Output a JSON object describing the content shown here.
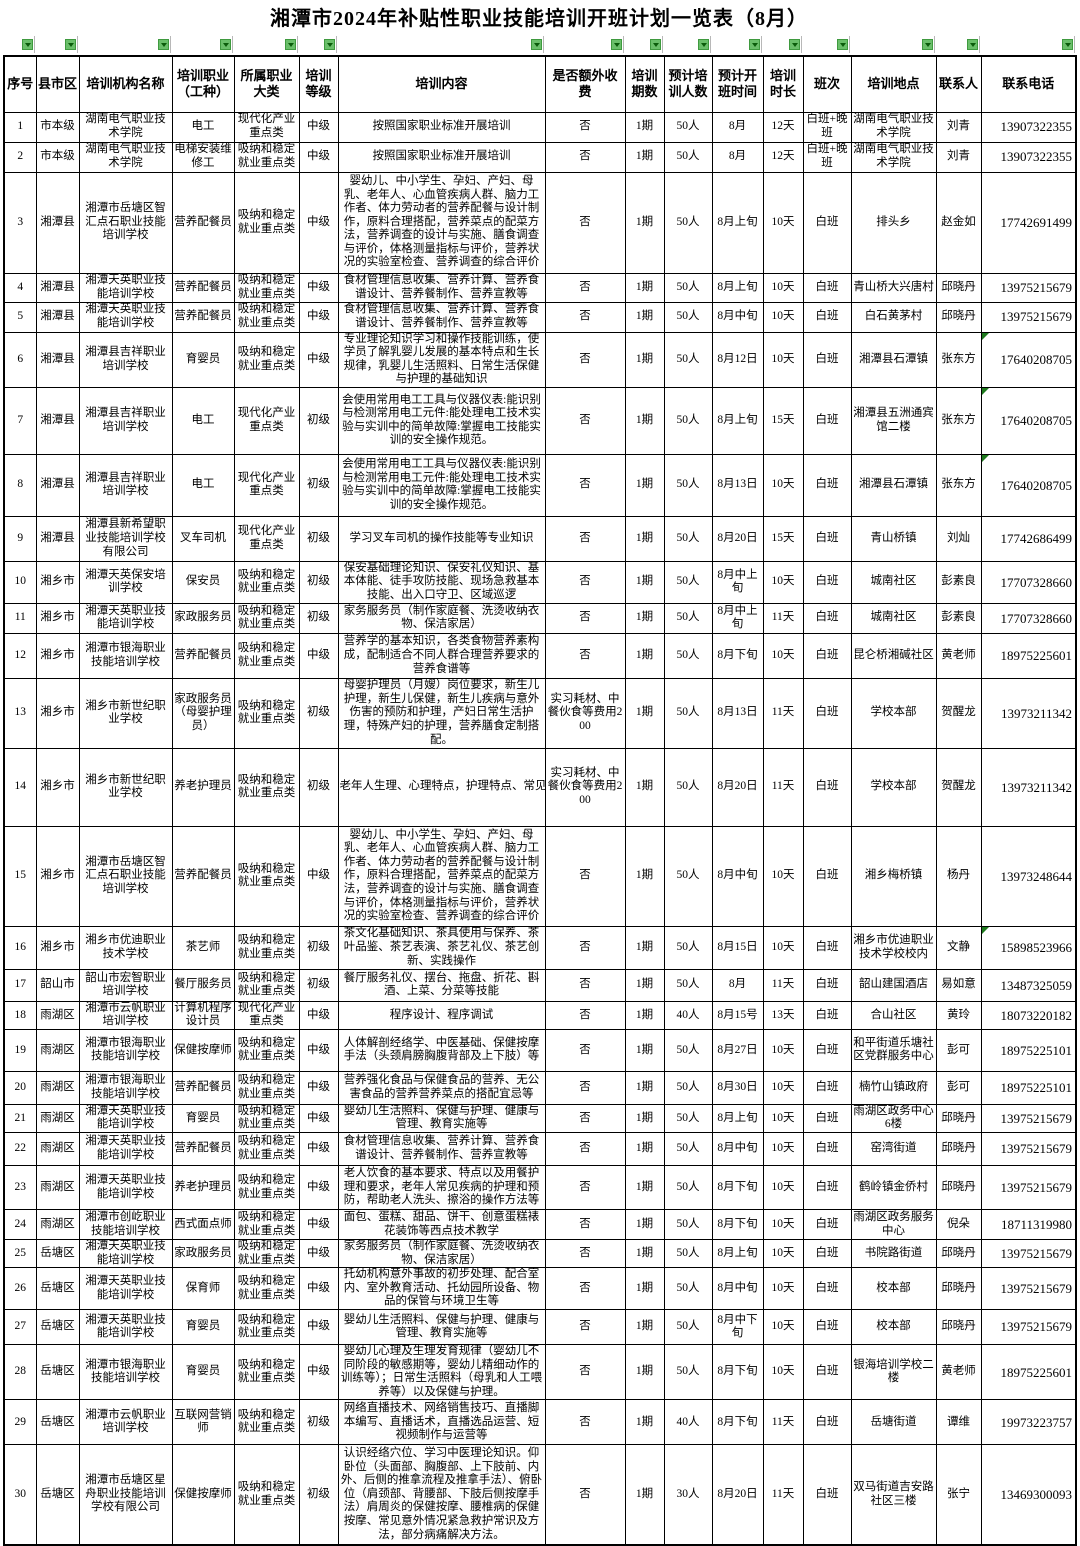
{
  "title": "湘潭市2024年补贴性职业技能培训开班计划一览表（8月）",
  "colors": {
    "filter_arrow_fill": "#6abf6a",
    "filter_arrow_triangle": "#0b5c0b",
    "cell_flag_green": "#1e7a1e",
    "grid_line": "#000000"
  },
  "icons": {
    "filter_arrow": "filter-dropdown-arrow-icon",
    "cell_flag": "cell-error-flag-icon"
  },
  "table": {
    "columns": [
      "序号",
      "县市区",
      "培训机构名称",
      "培训职业（工种）",
      "所属职业大类",
      "培训等级",
      "培训内容",
      "是否额外收费",
      "培训期数",
      "预计培训人数",
      "预计开班时间",
      "培训时长",
      "班次",
      "培训地点",
      "联系人",
      "联系电话"
    ],
    "rows": [
      [
        "1",
        "市本级",
        "湖南电气职业技术学院",
        "电工",
        "现代化产业重点类",
        "中级",
        "按照国家职业标准开展培训",
        "否",
        "1期",
        "50人",
        "8月",
        "12天",
        "白班+晚班",
        "湖南电气职业技术学院",
        "刘青",
        "13907322355"
      ],
      [
        "2",
        "市本级",
        "湖南电气职业技术学院",
        "电梯安装维修工",
        "吸纳和稳定就业重点类",
        "中级",
        "按照国家职业标准开展培训",
        "否",
        "1期",
        "50人",
        "8月",
        "12天",
        "白班+晚班",
        "湖南电气职业技术学院",
        "刘青",
        "13907322355"
      ],
      [
        "3",
        "湘潭县",
        "湘潭市岳塘区智汇点石职业技能培训学校",
        "营养配餐员",
        "吸纳和稳定就业重点类",
        "中级",
        "婴幼儿、中小学生、孕妇、产妇、母乳、老年人、心血管疾病人群、脑力工作者、体力劳动者的营养配餐与设计制作，原料合理搭配，营养菜点的配菜方法，营养调查的设计与实施、膳食调查与评价，体格测量指标与评价，营养状况的实验室检查、营养调查的综合评价",
        "否",
        "1期",
        "50人",
        "8月上旬",
        "10天",
        "白班",
        "排头乡",
        "赵金如",
        "17742691499"
      ],
      [
        "4",
        "湘潭县",
        "湘潭天英职业技能培训学校",
        "营养配餐员",
        "吸纳和稳定就业重点类",
        "中级",
        "食材管理信息收集、营养计算、营养食谱设计、营养餐制作、营养宣教等",
        "否",
        "1期",
        "50人",
        "8月上旬",
        "10天",
        "白班",
        "青山桥大兴唐村",
        "邱晓丹",
        "13975215679"
      ],
      [
        "5",
        "湘潭县",
        "湘潭天英职业技能培训学校",
        "营养配餐员",
        "吸纳和稳定就业重点类",
        "中级",
        "食材管理信息收集、营养计算、营养食谱设计、营养餐制作、营养宣教等",
        "否",
        "1期",
        "50人",
        "8月中旬",
        "10天",
        "白班",
        "白石黄茅村",
        "邱晓丹",
        "13975215679"
      ],
      [
        "6",
        "湘潭县",
        "湘潭县吉祥职业培训学校",
        "育婴员",
        "吸纳和稳定就业重点类",
        "中级",
        "专业理论知识学习和操作技能训练，使学员了解乳婴儿发展的基本特点和生长规律，乳婴儿生活照料、日常生活保健与护理的基础知识",
        "否",
        "1期",
        "50人",
        "8月12日",
        "10天",
        "白班",
        "湘潭县石潭镇",
        "张东方",
        "17640208705"
      ],
      [
        "7",
        "湘潭县",
        "湘潭县吉祥职业培训学校",
        "电工",
        "现代化产业重点类",
        "初级",
        "会使用常用电工工具与仪器仪表:能识别与检测常用电工元件:能处理电工技术实验与实训中的简单故障:掌握电工技能实训的安全操作规范。",
        "否",
        "1期",
        "50人",
        "8月上旬",
        "15天",
        "白班",
        "湘潭县五洲通宾馆二楼",
        "张东方",
        "17640208705"
      ],
      [
        "8",
        "湘潭县",
        "湘潭县吉祥职业培训学校",
        "电工",
        "现代化产业重点类",
        "初级",
        "会使用常用电工工具与仪器仪表:能识别与检测常用电工元件:能处理电工技术实验与实训中的简单故障:掌握电工技能实训的安全操作规范。",
        "否",
        "1期",
        "50人",
        "8月13日",
        "10天",
        "白班",
        "湘潭县石潭镇",
        "张东方",
        "17640208705"
      ],
      [
        "9",
        "湘潭县",
        "湘潭县新希望职业技能培训学校有限公司",
        "叉车司机",
        "现代化产业重点类",
        "初级",
        "学习叉车司机的操作技能等专业知识",
        "否",
        "1期",
        "50人",
        "8月20日",
        "15天",
        "白班",
        "青山桥镇",
        "刘灿",
        "17742686499"
      ],
      [
        "10",
        "湘乡市",
        "湘潭天英保安培训学校",
        "保安员",
        "吸纳和稳定就业重点类",
        "初级",
        "保安基础理论知识、保安礼仪知识、基本体能、徒手攻防技能、现场急救基本技能、出入口守卫、区域巡逻",
        "否",
        "1期",
        "50人",
        "8月中上旬",
        "10天",
        "白班",
        "城南社区",
        "彭素良",
        "17707328660"
      ],
      [
        "11",
        "湘乡市",
        "湘潭天英职业技能培训学校",
        "家政服务员",
        "吸纳和稳定就业重点类",
        "初级",
        "家务服务员（制作家庭餐、洗烫收纳衣物、保洁家居）",
        "否",
        "1期",
        "50人",
        "8月中上旬",
        "11天",
        "白班",
        "城南社区",
        "彭素良",
        "17707328660"
      ],
      [
        "12",
        "湘乡市",
        "湘潭市银海职业技能培训学校",
        "营养配餐员",
        "吸纳和稳定就业重点类",
        "中级",
        "营养学的基本知识，各类食物营养素构成，配制适合不同人群合理营养要求的营养食谱等",
        "否",
        "1期",
        "50人",
        "8月下旬",
        "10天",
        "白班",
        "昆仑桥湘碱社区",
        "黄老师",
        "18975225601"
      ],
      [
        "13",
        "湘乡市",
        "湘乡市新世纪职业学校",
        "家政服务员（母婴护理员）",
        "吸纳和稳定就业重点类",
        "初级",
        "母婴护理员（月嫂）岗位要求，新生儿护理，新生儿保健，新生儿疾病与意外伤害的预防和护理，产妇日常生活护理，特殊产妇的护理，营养膳食定制搭配。",
        "实习耗材、中餐伙食等费用200",
        "1期",
        "50人",
        "8月13日",
        "11天",
        "白班",
        "学校本部",
        "贺醒龙",
        "13973211342"
      ],
      [
        "14",
        "湘乡市",
        "湘乡市新世纪职业学校",
        "养老护理员",
        "吸纳和稳定就业重点类",
        "初级",
        "老年人生理、心理特点，护理特点、常见",
        "实习耗材、中餐伙食等费用200",
        "1期",
        "50人",
        "8月20日",
        "11天",
        "白班",
        "学校本部",
        "贺醒龙",
        "13973211342"
      ],
      [
        "15",
        "湘乡市",
        "湘潭市岳塘区智汇点石职业技能培训学校",
        "营养配餐员",
        "吸纳和稳定就业重点类",
        "中级",
        "婴幼儿、中小学生、孕妇、产妇、母乳、老年人、心血管疾病人群、脑力工作者、体力劳动者的营养配餐与设计制作，原料合理搭配，营养菜点的配菜方法，营养调查的设计与实施、膳食调查与评价，体格测量指标与评价，营养状况的实验室检查、营养调查的综合评价",
        "否",
        "1期",
        "50人",
        "8月中旬",
        "10天",
        "白班",
        "湘乡梅桥镇",
        "杨丹",
        "13973248644"
      ],
      [
        "16",
        "湘乡市",
        "湘乡市优迪职业技术学校",
        "茶艺师",
        "吸纳和稳定就业重点类",
        "初级",
        "茶文化基础知识、茶具使用与保养、茶叶品鉴、茶艺表演、茶艺礼仪、茶艺创新、实践操作",
        "否",
        "1期",
        "50人",
        "8月15日",
        "10天",
        "白班",
        "湘乡市优迪职业技术学校校内",
        "文静",
        "15898523966"
      ],
      [
        "17",
        "韶山市",
        "韶山市宏智职业培训学校",
        "餐厅服务员",
        "吸纳和稳定就业重点类",
        "初级",
        "餐厅服务礼仪、摆台、拖盘、折花、斟酒、上菜、分菜等技能",
        "否",
        "1期",
        "50人",
        "8月",
        "11天",
        "白班",
        "韶山建国酒店",
        "易如意",
        "13487325059"
      ],
      [
        "18",
        "雨湖区",
        "湘潭市云帆职业培训学校",
        "计算机程序设计员",
        "现代化产业重点类",
        "中级",
        "程序设计、程序调试",
        "否",
        "1期",
        "40人",
        "8月15号",
        "13天",
        "白班",
        "合山社区",
        "黄玲",
        "18073220182"
      ],
      [
        "19",
        "雨湖区",
        "湘潭市银海职业技能培训学校",
        "保健按摩师",
        "吸纳和稳定就业重点类",
        "中级",
        "人体解剖经络学、中医基础、保健按摩手法（头颈肩膀胸腹背部及上下肢）等",
        "否",
        "1期",
        "50人",
        "8月27日",
        "10天",
        "白班",
        "和平街道乐塘社区党群服务中心",
        "彭可",
        "18975225101"
      ],
      [
        "20",
        "雨湖区",
        "湘潭市银海职业技能培训学校",
        "营养配餐员",
        "吸纳和稳定就业重点类",
        "中级",
        "营养强化食品与保健食品的营养、无公害食品的营养营养菜点的搭配宜忌等",
        "否",
        "1期",
        "50人",
        "8月30日",
        "10天",
        "白班",
        "楠竹山镇政府",
        "彭可",
        "18975225101"
      ],
      [
        "21",
        "雨湖区",
        "湘潭天英职业技能培训学校",
        "育婴员",
        "吸纳和稳定就业重点类",
        "中级",
        "婴幼儿生活照料、保健与护理、健康与管理、教育实施等",
        "否",
        "1期",
        "50人",
        "8月上旬",
        "10天",
        "白班",
        "雨湖区政务中心6楼",
        "邱晓丹",
        "13975215679"
      ],
      [
        "22",
        "雨湖区",
        "湘潭天英职业技能培训学校",
        "营养配餐员",
        "吸纳和稳定就业重点类",
        "中级",
        "食材管理信息收集、营养计算、营养食谱设计、营养餐制作、营养宣教等",
        "否",
        "1期",
        "50人",
        "8月中旬",
        "10天",
        "白班",
        "窑湾街道",
        "邱晓丹",
        "13975215679"
      ],
      [
        "23",
        "雨湖区",
        "湘潭天英职业技能培训学校",
        "养老护理员",
        "吸纳和稳定就业重点类",
        "中级",
        "老人饮食的基本要求、特点以及用餐护理和要求，老年人常见疾病的护理和预防，帮助老人洗头、擦浴的操作方法等",
        "否",
        "1期",
        "50人",
        "8月下旬",
        "10天",
        "白班",
        "鹤岭镇金侨村",
        "邱晓丹",
        "13975215679"
      ],
      [
        "24",
        "雨湖区",
        "湘潭市创屹职业技能培训学校",
        "西式面点师",
        "吸纳和稳定就业重点类",
        "中级",
        "面包、蛋糕、甜品、饼干、创意蛋糕裱花装饰等西点技术教学",
        "否",
        "1期",
        "50人",
        "8月下旬",
        "10天",
        "白班",
        "雨湖区政务服务中心",
        "倪朵",
        "18711319980"
      ],
      [
        "25",
        "岳塘区",
        "湘潭天英职业技能培训学校",
        "家政服务员",
        "吸纳和稳定就业重点类",
        "中级",
        "家务服务员（制作家庭餐、洗烫收纳衣物、保洁家居）",
        "否",
        "1期",
        "50人",
        "8月上旬",
        "10天",
        "白班",
        "书院路街道",
        "邱晓丹",
        "13975215679"
      ],
      [
        "26",
        "岳塘区",
        "湘潭天英职业技能培训学校",
        "保育师",
        "吸纳和稳定就业重点类",
        "中级",
        "托幼机构意外事故的初步处理、配合室内、室外教育活动、托幼园所设备、物品的保管与环境卫生等",
        "否",
        "1期",
        "50人",
        "8月中旬",
        "10天",
        "白班",
        "校本部",
        "邱晓丹",
        "13975215679"
      ],
      [
        "27",
        "岳塘区",
        "湘潭天英职业技能培训学校",
        "育婴员",
        "吸纳和稳定就业重点类",
        "中级",
        "婴幼儿生活照料、保健与护理、健康与管理、教育实施等",
        "否",
        "1期",
        "50人",
        "8月中下旬",
        "10天",
        "白班",
        "校本部",
        "邱晓丹",
        "13975215679"
      ],
      [
        "28",
        "岳塘区",
        "湘潭市银海职业技能培训学校",
        "育婴员",
        "吸纳和稳定就业重点类",
        "中级",
        "婴幼儿心理及生理发育规律（婴幼儿不同阶段的敏感期等，婴幼儿精细动作的训练等）；日常生活照料（母乳和人工喂养等）以及保健与护理。",
        "否",
        "1期",
        "50人",
        "8月下旬",
        "10天",
        "白班",
        "银海培训学校二楼",
        "黄老师",
        "18975225601"
      ],
      [
        "29",
        "岳塘区",
        "湘潭市云帆职业培训学校",
        "互联网营销师",
        "吸纳和稳定就业重点类",
        "初级",
        "网络直播技术、网络销售技巧、直播脚本编写、直播话术，直播选品运营、短视频制作与运营等",
        "否",
        "1期",
        "40人",
        "8月下旬",
        "11天",
        "白班",
        "岳塘街道",
        "谭维",
        "19973223757"
      ],
      [
        "30",
        "岳塘区",
        "湘潭市岳塘区星舟职业技能培训学校有限公司",
        "保健按摩师",
        "吸纳和稳定就业重点类",
        "初级",
        "认识经络穴位、学习中医理论知识。仰卧位（头面部、胸腹部、上下肢前、内外、后侧的推拿流程及推拿手法）、俯卧位（肩颈部、背腰部、下肢后侧按摩手法）肩周炎的保健按摩、腰椎病的保健按摩、常见意外情况紧急救护常识及方法，部分病痛解决方法。",
        "否",
        "1期",
        "30人",
        "8月20日",
        "11天",
        "白班",
        "双马街道吉安路社区三楼",
        "张宁",
        "13469300093"
      ]
    ]
  }
}
